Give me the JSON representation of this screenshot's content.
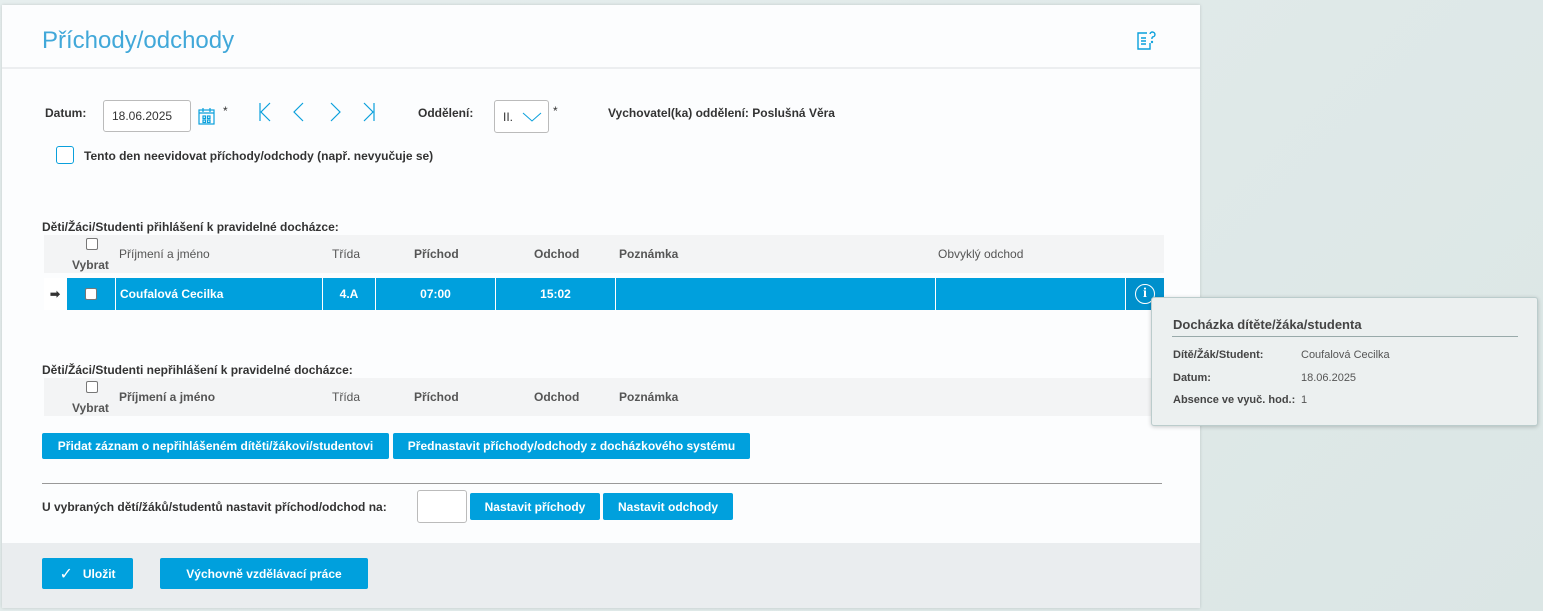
{
  "header": {
    "title": "Příchody/odchody",
    "help_icon": "help-document-icon"
  },
  "filters": {
    "date_label": "Datum:",
    "date_value": "18.06.2025",
    "required": "*",
    "department_label": "Oddělení:",
    "department_value": "II.",
    "teacher_text": "Vychovatel(ka) oddělení: Poslušná Věra",
    "no_record_label": "Tento den neevidovat příchody/odchody (např. nevyučuje se)"
  },
  "registered": {
    "caption": "Děti/Žáci/Studenti přihlášení k pravidelné docházce:",
    "columns": [
      "Vybrat",
      "Příjmení a jméno",
      "Třída",
      "Příchod",
      "Odchod",
      "Poznámka",
      "Obvyklý odchod"
    ],
    "rows": [
      {
        "name": "Coufalová Cecilka",
        "class": "4.A",
        "arrival": "07:00",
        "departure": "15:02",
        "note": "",
        "usual": ""
      }
    ]
  },
  "unregistered": {
    "caption": "Děti/Žáci/Studenti nepřihlášení k pravidelné docházce:",
    "columns": [
      "Vybrat",
      "Příjmení a jméno",
      "Třída",
      "Příchod",
      "Odchod",
      "Poznámka"
    ]
  },
  "actions": {
    "add_record": "Přidat záznam o nepřihlášeném dítěti/žákovi/studentovi",
    "preset": "Přednastavit příchody/odchody z docházkového systému",
    "bulk_label": "U vybraných dětí/žáků/studentů nastavit příchod/odchod na:",
    "bulk_value": "",
    "set_arrivals": "Nastavit příchody",
    "set_departures": "Nastavit odchody"
  },
  "footer": {
    "save": "Uložit",
    "work": "Výchovně vzdělávací práce"
  },
  "tooltip": {
    "title": "Docházka dítěte/žáka/studenta",
    "rows": [
      {
        "k": "Dítě/Žák/Student:",
        "v": "Coufalová Cecilka"
      },
      {
        "k": "Datum:",
        "v": "18.06.2025"
      },
      {
        "k": "Absence ve vyuč. hod.:",
        "v": "1"
      }
    ]
  },
  "colors": {
    "accent": "#00a0dd"
  }
}
